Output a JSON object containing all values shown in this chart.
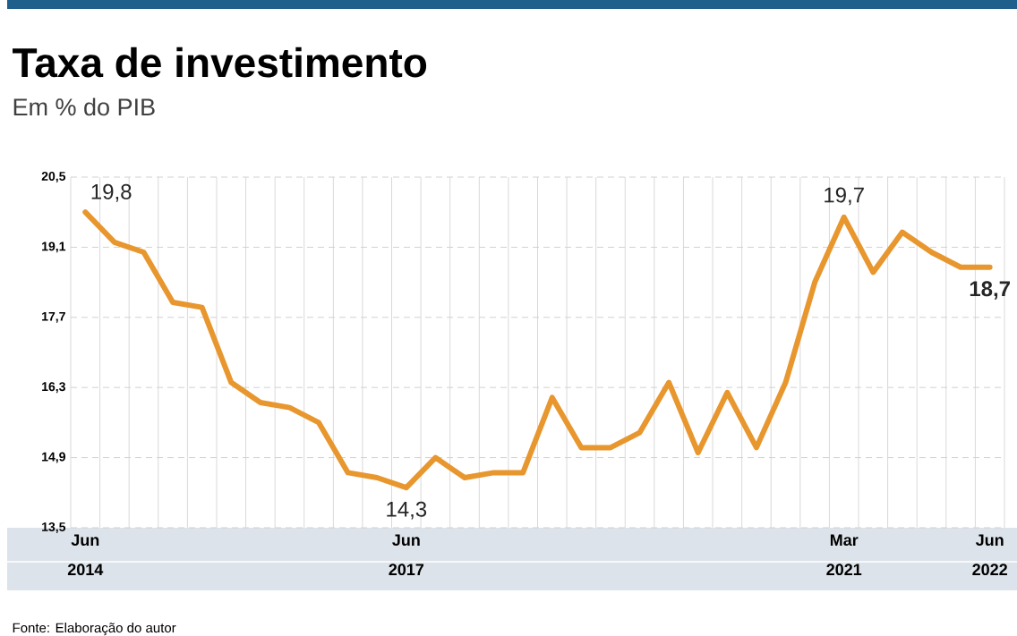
{
  "chart_data": {
    "type": "line",
    "title": "Taxa de investimento",
    "subtitle": "Em % do PIB",
    "categories": [
      "Jun 2014",
      null,
      null,
      null,
      null,
      null,
      null,
      null,
      null,
      null,
      null,
      "Jun 2017",
      null,
      null,
      null,
      null,
      null,
      null,
      null,
      null,
      null,
      null,
      null,
      null,
      null,
      null,
      "Mar 2021",
      null,
      null,
      null,
      null,
      "Jun 2022"
    ],
    "values": [
      19.8,
      19.2,
      19.0,
      18.0,
      17.9,
      16.4,
      16.0,
      15.9,
      15.6,
      14.6,
      14.5,
      14.3,
      14.9,
      14.5,
      14.6,
      14.6,
      16.1,
      15.1,
      15.1,
      15.4,
      16.4,
      15.0,
      16.2,
      15.1,
      16.4,
      18.4,
      19.7,
      18.6,
      19.4,
      19.0,
      18.7,
      18.7
    ],
    "value_labels": [
      "19,8",
      null,
      null,
      null,
      null,
      null,
      null,
      null,
      null,
      null,
      null,
      "14,3",
      null,
      null,
      null,
      null,
      null,
      null,
      null,
      null,
      null,
      null,
      null,
      null,
      null,
      null,
      "19,7",
      null,
      null,
      null,
      null,
      "18,7"
    ],
    "color": "#e8962e",
    "ylim": [
      13.5,
      20.5
    ],
    "yticks": [
      {
        "value": 13.5,
        "label": "13,5"
      },
      {
        "value": 14.9,
        "label": "14,9"
      },
      {
        "value": 16.3,
        "label": "16,3"
      },
      {
        "value": 17.7,
        "label": "17,7"
      },
      {
        "value": 19.1,
        "label": "19,1"
      },
      {
        "value": 20.5,
        "label": "20,5"
      }
    ],
    "grid": true,
    "marker": "none",
    "annotations": [
      "Fonte: Elaboração do autor"
    ]
  }
}
